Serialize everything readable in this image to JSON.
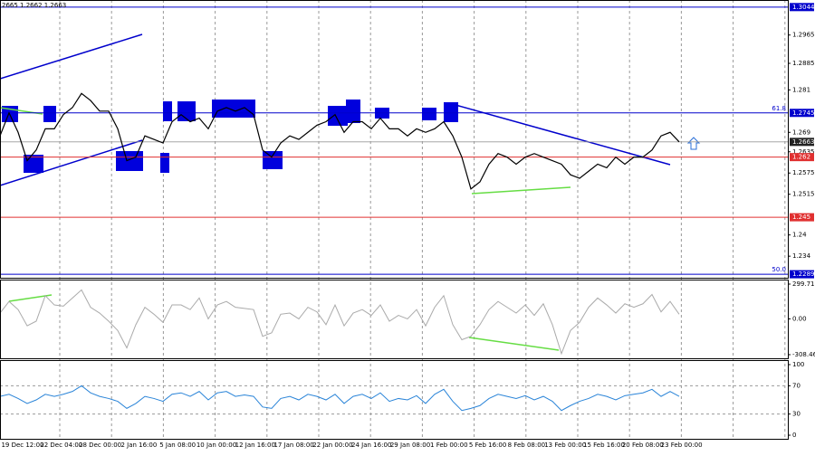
{
  "header": "2665 1.2662 1.2663",
  "chart_data": [
    {
      "type": "line",
      "color": "#000000",
      "ylim": [
        1.2279,
        1.3064
      ],
      "yticks": [
        1.2965,
        1.2885,
        1.281,
        1.269,
        1.2635,
        1.2575,
        1.2515,
        1.24,
        1.234
      ],
      "levels": [
        {
          "value": 1.3044,
          "color": "#0000cc"
        },
        {
          "value": 1.2745,
          "color": "#0000cc"
        },
        {
          "value": 1.2663,
          "color": "#999999"
        },
        {
          "value": 1.262,
          "color": "#e03030"
        },
        {
          "value": 1.245,
          "color": "#e03030"
        },
        {
          "value": 1.2289,
          "color": "#0000cc"
        }
      ],
      "fib_labels": [
        {
          "price": 1.2745,
          "label": "61.8"
        },
        {
          "price": 1.2289,
          "label": "50.0"
        }
      ],
      "x_labels": [
        "19 Dec 12:00",
        "22 Dec 04:00",
        "28 Dec 00:00",
        "2 Jan 16:00",
        "5 Jan 08:00",
        "10 Jan 00:00",
        "12 Jan 16:00",
        "17 Jan 08:00",
        "22 Jan 00:00",
        "24 Jan 16:00",
        "29 Jan 08:00",
        "1 Feb 00:00",
        "5 Feb 16:00",
        "8 Feb 08:00",
        "13 Feb 00:00",
        "15 Feb 16:00",
        "20 Feb 08:00",
        "23 Feb 00:00"
      ],
      "values": [
        1.268,
        1.2745,
        1.269,
        1.261,
        1.264,
        1.27,
        1.27,
        1.274,
        1.276,
        1.28,
        1.278,
        1.275,
        1.275,
        1.27,
        1.261,
        1.262,
        1.268,
        1.267,
        1.266,
        1.272,
        1.274,
        1.272,
        1.273,
        1.27,
        1.275,
        1.276,
        1.275,
        1.276,
        1.274,
        1.264,
        1.262,
        1.266,
        1.268,
        1.267,
        1.269,
        1.271,
        1.272,
        1.274,
        1.269,
        1.272,
        1.272,
        1.27,
        1.273,
        1.27,
        1.27,
        1.268,
        1.27,
        1.269,
        1.27,
        1.272,
        1.268,
        1.262,
        1.253,
        1.255,
        1.26,
        1.263,
        1.262,
        1.26,
        1.262,
        1.263,
        1.262,
        1.261,
        1.26,
        1.257,
        1.256,
        1.258,
        1.26,
        1.259,
        1.262,
        1.26,
        1.262,
        1.262,
        1.264,
        1.268,
        1.269,
        1.2663
      ]
    },
    {
      "type": "line",
      "color": "#aaaaaa",
      "ylim": [
        -339.7,
        338.7
      ],
      "yticks": [
        299.7167,
        {
          "value": 0,
          "label": "0.00"
        },
        -308.465
      ],
      "values": [
        50,
        150,
        80,
        -60,
        -20,
        200,
        120,
        110,
        180,
        250,
        100,
        50,
        -20,
        -100,
        -250,
        -50,
        100,
        40,
        -30,
        120,
        120,
        80,
        180,
        0,
        120,
        150,
        100,
        90,
        80,
        -150,
        -120,
        40,
        50,
        0,
        100,
        60,
        -50,
        120,
        -60,
        50,
        80,
        30,
        120,
        -20,
        30,
        0,
        80,
        -60,
        100,
        200,
        -50,
        -180,
        -150,
        -50,
        80,
        150,
        100,
        50,
        120,
        30,
        130,
        -50,
        -300,
        -100,
        -30,
        100,
        180,
        120,
        50,
        130,
        100,
        130,
        210,
        60,
        150,
        40
      ]
    },
    {
      "type": "line",
      "color": "#2a84d8",
      "ylim": [
        -5.1,
        106.4
      ],
      "yticks": [
        100,
        70,
        30,
        0
      ],
      "values": [
        55,
        58,
        52,
        45,
        50,
        58,
        55,
        58,
        62,
        70,
        60,
        55,
        52,
        48,
        38,
        45,
        55,
        52,
        48,
        58,
        60,
        55,
        62,
        50,
        60,
        62,
        55,
        57,
        55,
        40,
        38,
        52,
        55,
        50,
        58,
        55,
        50,
        58,
        45,
        55,
        58,
        52,
        60,
        48,
        52,
        50,
        56,
        45,
        58,
        65,
        48,
        35,
        38,
        42,
        52,
        58,
        55,
        52,
        56,
        50,
        55,
        48,
        35,
        42,
        48,
        52,
        58,
        55,
        50,
        56,
        58,
        60,
        65,
        55,
        62,
        55
      ]
    }
  ]
}
